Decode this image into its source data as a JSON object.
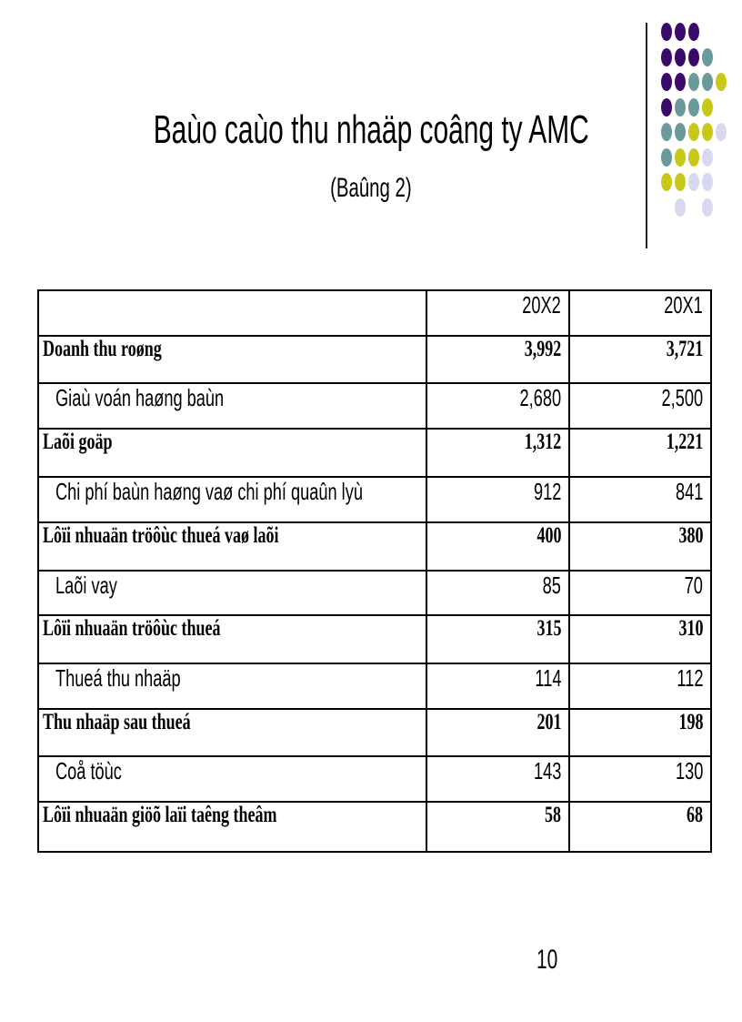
{
  "slide": {
    "title": "Baùo caùo thu nhaäp coâng ty AMC",
    "subtitle": "(Baûng 2)",
    "page_number": "10",
    "decoration_colors": {
      "purple": "#3a0a6b",
      "teal": "#6b9a9a",
      "yellow": "#c8c81a",
      "lavender": "#d8d8f0"
    }
  },
  "table": {
    "columns": [
      "",
      "20X2",
      "20X1"
    ],
    "rows": [
      {
        "label": "Doanh thu roøng",
        "v1": "3,992",
        "v2": "3,721",
        "bold": true
      },
      {
        "label": "Giaù voán haøng baùn",
        "v1": "2,680",
        "v2": "2,500",
        "bold": false
      },
      {
        "label": "Laõi goäp",
        "v1": "1,312",
        "v2": "1,221",
        "bold": true
      },
      {
        "label": "Chi phí baùn haøng vaø chi phí quaûn lyù",
        "v1": "912",
        "v2": "841",
        "bold": false
      },
      {
        "label": "Lôïi nhuaän tröôùc thueá vaø laõi",
        "v1": "400",
        "v2": "380",
        "bold": true
      },
      {
        "label": "Laõi vay",
        "v1": "85",
        "v2": "70",
        "bold": false
      },
      {
        "label": "Lôïi nhuaän tröôùc thueá",
        "v1": "315",
        "v2": "310",
        "bold": true
      },
      {
        "label": "Thueá thu nhaäp",
        "v1": "114",
        "v2": "112",
        "bold": false
      },
      {
        "label": "Thu nhaäp sau thueá",
        "v1": "201",
        "v2": "198",
        "bold": true
      },
      {
        "label": "Coå töùc",
        "v1": "143",
        "v2": "130",
        "bold": false
      },
      {
        "label": "Lôïi nhuaän giöõ laïi taêng theâm",
        "v1": "58",
        "v2": "68",
        "bold": true
      }
    ]
  }
}
